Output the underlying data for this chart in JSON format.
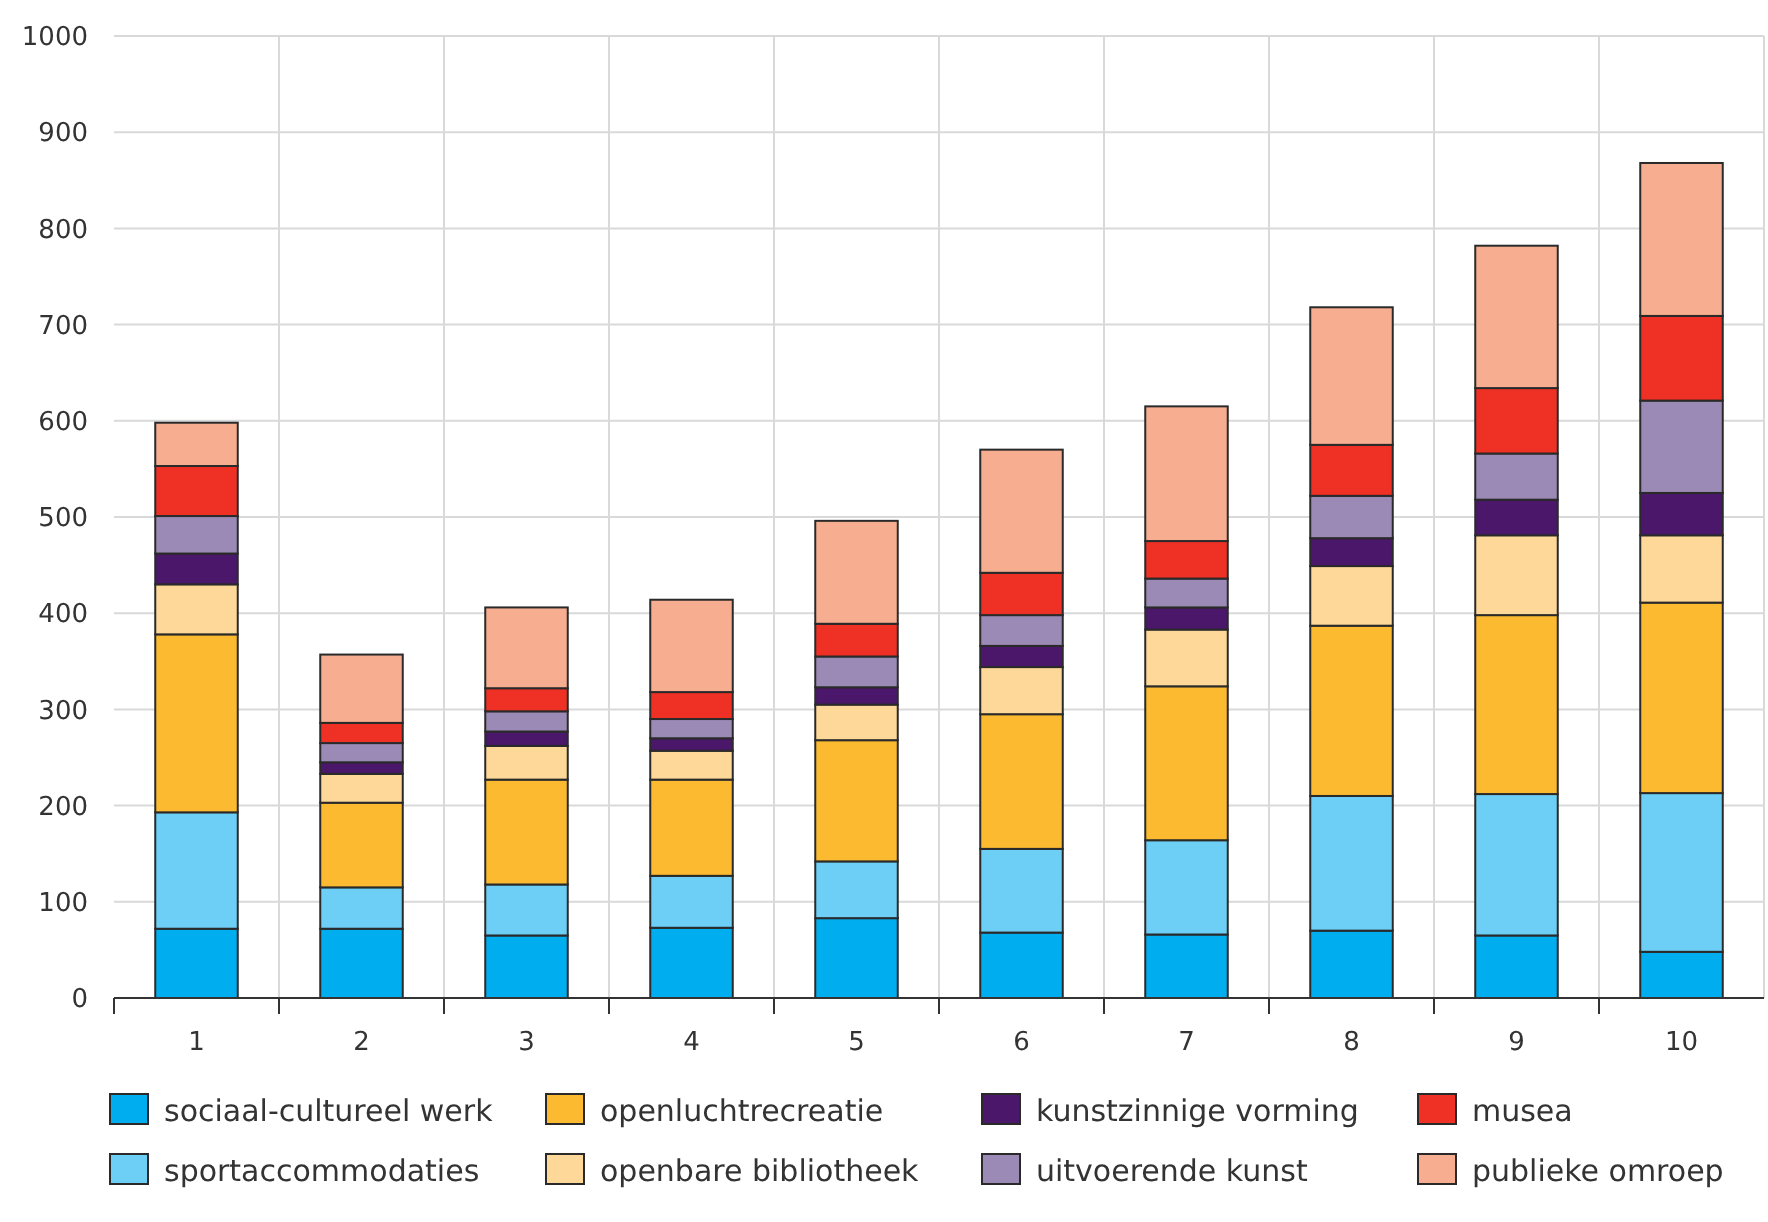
{
  "chart_data": {
    "type": "bar",
    "stacked": true,
    "categories": [
      "1",
      "2",
      "3",
      "4",
      "5",
      "6",
      "7",
      "8",
      "9",
      "10"
    ],
    "ylim": [
      0,
      1000
    ],
    "yticks": [
      0,
      100,
      200,
      300,
      400,
      500,
      600,
      700,
      800,
      900,
      1000
    ],
    "grid": true,
    "legend": "bottom",
    "series": [
      {
        "name": "sociaal-cultureel werk",
        "color": "#00aeef",
        "values": [
          72,
          72,
          65,
          73,
          83,
          68,
          66,
          70,
          65,
          48
        ]
      },
      {
        "name": "sportaccommodaties",
        "color": "#6dcff6",
        "values": [
          121,
          43,
          53,
          54,
          59,
          87,
          98,
          140,
          147,
          165
        ]
      },
      {
        "name": "openluchtrecreatie",
        "color": "#fbba30",
        "values": [
          185,
          88,
          109,
          100,
          126,
          140,
          160,
          177,
          186,
          198
        ]
      },
      {
        "name": "openbare bibliotheek",
        "color": "#fed898",
        "values": [
          52,
          30,
          35,
          30,
          37,
          49,
          59,
          62,
          83,
          70
        ]
      },
      {
        "name": "kunstzinnige vorming",
        "color": "#4a176b",
        "values": [
          32,
          12,
          15,
          13,
          18,
          22,
          23,
          29,
          37,
          44
        ]
      },
      {
        "name": "uitvoerende kunst",
        "color": "#9b8ab5",
        "values": [
          39,
          20,
          21,
          20,
          32,
          32,
          30,
          44,
          48,
          96
        ]
      },
      {
        "name": "musea",
        "color": "#ee3124",
        "values": [
          52,
          21,
          24,
          28,
          34,
          44,
          39,
          53,
          68,
          88
        ]
      },
      {
        "name": "publieke omroep",
        "color": "#f7ae90",
        "values": [
          45,
          71,
          84,
          96,
          107,
          128,
          140,
          143,
          148,
          159
        ]
      }
    ]
  }
}
